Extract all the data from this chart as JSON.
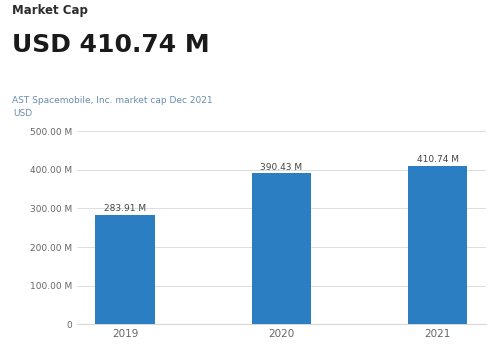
{
  "title_top": "Market Cap",
  "title_big": "USD 410.74 M",
  "subtitle": "AST Spacemobile, Inc. market cap Dec 2021",
  "axis_label": "USD",
  "categories": [
    "2019",
    "2020",
    "2021"
  ],
  "values": [
    283.91,
    390.43,
    410.74
  ],
  "bar_labels": [
    "283.91 M",
    "390.43 M",
    "410.74 M"
  ],
  "bar_color": "#2B7EC1",
  "ylim": [
    0,
    500
  ],
  "yticks": [
    0,
    100,
    200,
    300,
    400,
    500
  ],
  "ytick_labels": [
    "0",
    "100.00 M",
    "200.00 M",
    "300.00 M",
    "400.00 M",
    "500.00 M"
  ],
  "background_color": "#ffffff",
  "grid_color": "#d8d8d8",
  "text_color_top": "#2c2c2c",
  "text_color_big": "#1a1a1a",
  "text_color_sub": "#6b8cae",
  "bar_label_color": "#444444",
  "axis_label_color": "#6b8cae",
  "tick_color": "#666666"
}
